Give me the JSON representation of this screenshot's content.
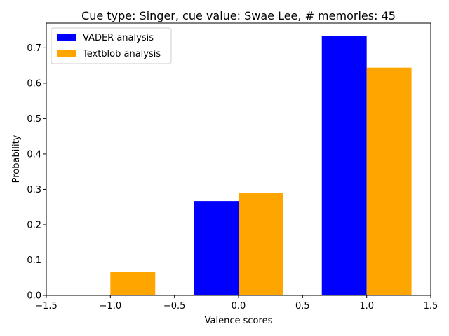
{
  "chart_data": {
    "type": "bar",
    "title": "Cue type: Singer, cue value: Swae Lee, # memories: 45",
    "xlabel": "Valence scores",
    "ylabel": "Probability",
    "xlim": [
      -1.5,
      1.5
    ],
    "ylim": [
      0,
      0.77
    ],
    "xticks": [
      "−1.5",
      "−1.0",
      "−0.5",
      "0.0",
      "0.5",
      "1.0",
      "1.5"
    ],
    "xtick_values": [
      -1.5,
      -1.0,
      -0.5,
      0.0,
      0.5,
      1.0,
      1.5
    ],
    "yticks": [
      "0.0",
      "0.1",
      "0.2",
      "0.3",
      "0.4",
      "0.5",
      "0.6",
      "0.7"
    ],
    "ytick_values": [
      0,
      0.1,
      0.2,
      0.3,
      0.4,
      0.5,
      0.6,
      0.7
    ],
    "categories": [
      -1,
      0,
      1
    ],
    "bar_width": 0.35,
    "legend_position": "upper-left",
    "grid": false,
    "series": [
      {
        "name": "VADER analysis",
        "color": "#0000ff",
        "offset": "left",
        "values": [
          0.0,
          0.267,
          0.733
        ]
      },
      {
        "name": "Textblob analysis",
        "color": "#ffa500",
        "offset": "right",
        "values": [
          0.067,
          0.289,
          0.644
        ]
      }
    ]
  }
}
